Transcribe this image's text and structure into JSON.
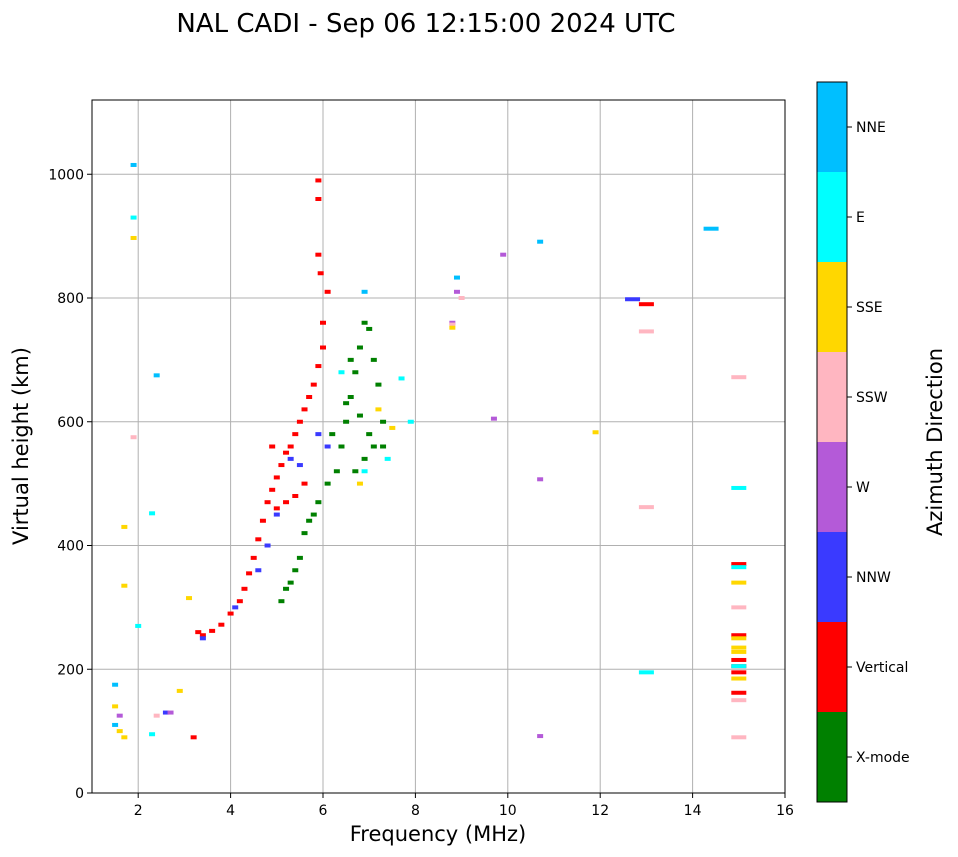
{
  "chart_data": {
    "type": "scatter",
    "title": "NAL CADI - Sep 06 12:15:00 2024 UTC",
    "xlabel": "Frequency (MHz)",
    "ylabel": "Virtual height (km)",
    "xlim": [
      1,
      16
    ],
    "ylim": [
      0,
      1120
    ],
    "xticks": [
      2,
      4,
      6,
      8,
      10,
      12,
      14,
      16
    ],
    "yticks": [
      0,
      200,
      400,
      600,
      800,
      1000
    ],
    "grid": true,
    "colorbar": {
      "label": "Azimuth Direction",
      "categories": [
        {
          "name": "X-mode",
          "color": "#008000"
        },
        {
          "name": "Vertical",
          "color": "#ff0000"
        },
        {
          "name": "NNW",
          "color": "#3a3aff"
        },
        {
          "name": "W",
          "color": "#b45ad8"
        },
        {
          "name": "SSW",
          "color": "#ffb6c1"
        },
        {
          "name": "SSE",
          "color": "#ffd700"
        },
        {
          "name": "E",
          "color": "#00ffff"
        },
        {
          "name": "NNE",
          "color": "#00bfff"
        }
      ]
    },
    "series": [
      {
        "name": "X-mode",
        "points": [
          [
            5.3,
            340
          ],
          [
            5.5,
            380
          ],
          [
            5.6,
            420
          ],
          [
            5.7,
            440
          ],
          [
            5.9,
            470
          ],
          [
            6.1,
            500
          ],
          [
            6.3,
            520
          ],
          [
            6.4,
            560
          ],
          [
            6.5,
            600
          ],
          [
            6.6,
            640
          ],
          [
            6.7,
            680
          ],
          [
            6.8,
            720
          ],
          [
            6.9,
            760
          ],
          [
            7.0,
            750
          ],
          [
            7.1,
            700
          ],
          [
            7.2,
            660
          ],
          [
            7.3,
            600
          ],
          [
            7.1,
            560
          ],
          [
            6.9,
            540
          ],
          [
            6.7,
            520
          ],
          [
            6.5,
            630
          ],
          [
            6.8,
            610
          ],
          [
            7.0,
            580
          ],
          [
            5.1,
            310
          ],
          [
            5.2,
            330
          ],
          [
            5.4,
            360
          ],
          [
            5.8,
            450
          ],
          [
            6.2,
            580
          ],
          [
            6.6,
            700
          ],
          [
            7.3,
            560
          ]
        ]
      },
      {
        "name": "Vertical",
        "points": [
          [
            3.3,
            260
          ],
          [
            3.4,
            255
          ],
          [
            3.6,
            262
          ],
          [
            3.8,
            272
          ],
          [
            4.0,
            290
          ],
          [
            4.2,
            310
          ],
          [
            4.3,
            330
          ],
          [
            4.4,
            355
          ],
          [
            4.5,
            380
          ],
          [
            4.6,
            410
          ],
          [
            4.7,
            440
          ],
          [
            4.8,
            470
          ],
          [
            4.9,
            490
          ],
          [
            5.0,
            510
          ],
          [
            5.1,
            530
          ],
          [
            5.2,
            550
          ],
          [
            5.3,
            560
          ],
          [
            5.4,
            580
          ],
          [
            5.5,
            600
          ],
          [
            5.6,
            620
          ],
          [
            5.7,
            640
          ],
          [
            5.8,
            660
          ],
          [
            5.9,
            690
          ],
          [
            6.0,
            720
          ],
          [
            6.0,
            760
          ],
          [
            6.1,
            810
          ],
          [
            5.95,
            840
          ],
          [
            5.9,
            870
          ],
          [
            5.9,
            960
          ],
          [
            5.9,
            990
          ],
          [
            4.9,
            560
          ],
          [
            5.0,
            460
          ],
          [
            5.2,
            470
          ],
          [
            5.4,
            480
          ],
          [
            5.6,
            500
          ],
          [
            3.2,
            90
          ],
          [
            15.0,
            370
          ],
          [
            15.0,
            255
          ],
          [
            15.0,
            215
          ],
          [
            15.0,
            205
          ],
          [
            15.0,
            195
          ],
          [
            15.0,
            162
          ],
          [
            13.0,
            790
          ]
        ]
      },
      {
        "name": "NNW",
        "points": [
          [
            3.4,
            250
          ],
          [
            4.1,
            300
          ],
          [
            4.6,
            360
          ],
          [
            4.8,
            400
          ],
          [
            5.0,
            450
          ],
          [
            5.3,
            540
          ],
          [
            5.5,
            530
          ],
          [
            5.9,
            580
          ],
          [
            6.1,
            560
          ],
          [
            12.7,
            798
          ],
          [
            2.6,
            130
          ]
        ]
      },
      {
        "name": "W",
        "points": [
          [
            9.9,
            870
          ],
          [
            10.7,
            507
          ],
          [
            10.7,
            92
          ],
          [
            9.7,
            605
          ],
          [
            8.9,
            810
          ],
          [
            8.8,
            760
          ],
          [
            2.7,
            130
          ],
          [
            1.6,
            125
          ]
        ]
      },
      {
        "name": "SSW",
        "points": [
          [
            13.0,
            746
          ],
          [
            13.0,
            462
          ],
          [
            15.0,
            672
          ],
          [
            15.0,
            300
          ],
          [
            15.0,
            150
          ],
          [
            15.0,
            90
          ],
          [
            8.8,
            757
          ],
          [
            9.0,
            800
          ],
          [
            2.4,
            125
          ],
          [
            1.9,
            575
          ]
        ]
      },
      {
        "name": "SSE",
        "points": [
          [
            11.9,
            583
          ],
          [
            8.8,
            752
          ],
          [
            15.0,
            340
          ],
          [
            15.0,
            250
          ],
          [
            15.0,
            235
          ],
          [
            15.0,
            228
          ],
          [
            15.0,
            185
          ],
          [
            1.6,
            100
          ],
          [
            1.7,
            90
          ],
          [
            1.5,
            140
          ],
          [
            3.1,
            315
          ],
          [
            2.9,
            165
          ],
          [
            1.7,
            430
          ],
          [
            1.7,
            335
          ],
          [
            1.9,
            897
          ],
          [
            6.8,
            500
          ],
          [
            7.2,
            620
          ],
          [
            7.5,
            590
          ]
        ]
      },
      {
        "name": "E",
        "points": [
          [
            13.0,
            195
          ],
          [
            15.0,
            493
          ],
          [
            15.0,
            365
          ],
          [
            15.0,
            205
          ],
          [
            2.3,
            95
          ],
          [
            2.0,
            270
          ],
          [
            2.3,
            452
          ],
          [
            1.9,
            930
          ],
          [
            7.7,
            670
          ],
          [
            7.9,
            600
          ],
          [
            7.4,
            540
          ],
          [
            6.4,
            680
          ],
          [
            6.9,
            520
          ]
        ]
      },
      {
        "name": "NNE",
        "points": [
          [
            14.4,
            912
          ],
          [
            10.7,
            891
          ],
          [
            8.9,
            833
          ],
          [
            6.9,
            810
          ],
          [
            2.4,
            675
          ],
          [
            1.5,
            175
          ],
          [
            1.9,
            1015
          ],
          [
            1.5,
            110
          ]
        ]
      }
    ]
  }
}
